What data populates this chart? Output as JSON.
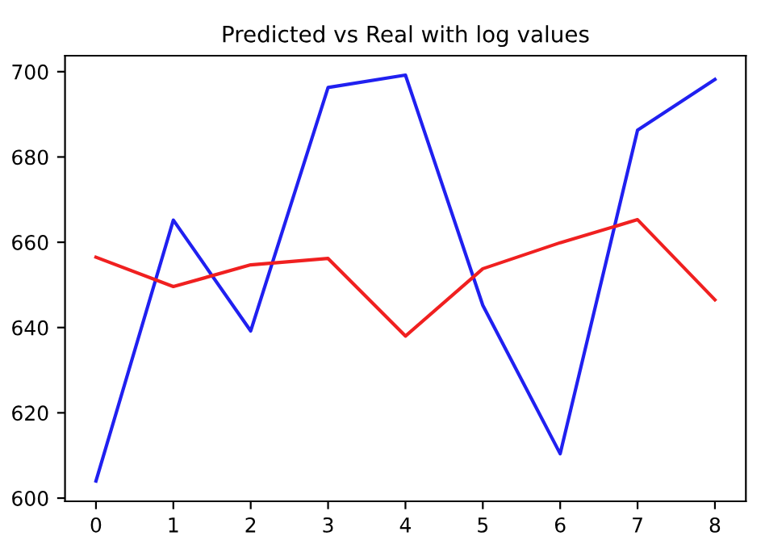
{
  "chart_data": {
    "type": "line",
    "title": "Predicted vs Real with log values",
    "x": [
      0,
      1,
      2,
      3,
      4,
      5,
      6,
      7,
      8
    ],
    "series": [
      {
        "color": "#2020f0",
        "values": [
          604.0,
          665.2,
          639.2,
          696.3,
          699.2,
          645.2,
          610.4,
          686.3,
          698.2
        ]
      },
      {
        "color": "#f02020",
        "values": [
          656.5,
          649.6,
          654.7,
          656.2,
          638.0,
          653.8,
          659.9,
          665.3,
          646.5
        ]
      }
    ],
    "xlim": [
      -0.4,
      8.4
    ],
    "xticks": [
      0,
      1,
      2,
      3,
      4,
      5,
      6,
      7,
      8
    ],
    "ylim": [
      599.25,
      703.75
    ],
    "yticks": [
      600,
      620,
      640,
      660,
      680,
      700
    ],
    "grid": false,
    "marker": "none",
    "line_style": "solid"
  }
}
